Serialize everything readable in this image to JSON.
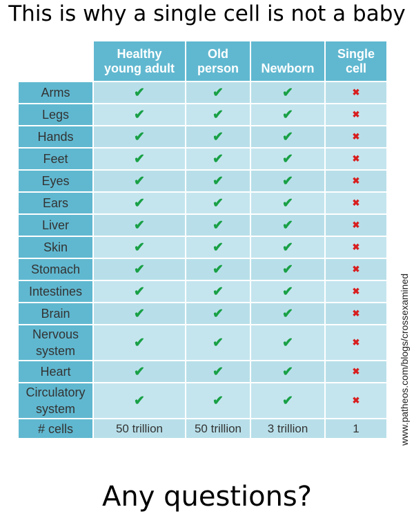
{
  "title": "This is why a single cell is not a baby",
  "columns": [
    "Healthy young adult",
    "Old person",
    "Newborn",
    "Single cell"
  ],
  "columns_lines": [
    [
      "Healthy",
      "young adult"
    ],
    [
      "Old",
      "person"
    ],
    [
      "",
      "Newborn"
    ],
    [
      "Single",
      "cell"
    ]
  ],
  "rows": [
    {
      "label": [
        "Arms"
      ],
      "values": [
        "✔",
        "✔",
        "✔",
        "✖"
      ]
    },
    {
      "label": [
        "Legs"
      ],
      "values": [
        "✔",
        "✔",
        "✔",
        "✖"
      ]
    },
    {
      "label": [
        "Hands"
      ],
      "values": [
        "✔",
        "✔",
        "✔",
        "✖"
      ]
    },
    {
      "label": [
        "Feet"
      ],
      "values": [
        "✔",
        "✔",
        "✔",
        "✖"
      ]
    },
    {
      "label": [
        "Eyes"
      ],
      "values": [
        "✔",
        "✔",
        "✔",
        "✖"
      ]
    },
    {
      "label": [
        "Ears"
      ],
      "values": [
        "✔",
        "✔",
        "✔",
        "✖"
      ]
    },
    {
      "label": [
        "Liver"
      ],
      "values": [
        "✔",
        "✔",
        "✔",
        "✖"
      ]
    },
    {
      "label": [
        "Skin"
      ],
      "values": [
        "✔",
        "✔",
        "✔",
        "✖"
      ]
    },
    {
      "label": [
        "Stomach"
      ],
      "values": [
        "✔",
        "✔",
        "✔",
        "✖"
      ]
    },
    {
      "label": [
        "Intestines"
      ],
      "values": [
        "✔",
        "✔",
        "✔",
        "✖"
      ]
    },
    {
      "label": [
        "Brain"
      ],
      "values": [
        "✔",
        "✔",
        "✔",
        "✖"
      ]
    },
    {
      "label": [
        "Nervous",
        "system"
      ],
      "values": [
        "✔",
        "✔",
        "✔",
        "✖"
      ]
    },
    {
      "label": [
        "Heart"
      ],
      "values": [
        "✔",
        "✔",
        "✔",
        "✖"
      ]
    },
    {
      "label": [
        "Circulatory",
        "system"
      ],
      "values": [
        "✔",
        "✔",
        "✔",
        "✖"
      ]
    }
  ],
  "count_row": {
    "label": "# cells",
    "values": [
      "50 trillion",
      "50 trillion",
      "3 trillion",
      "1"
    ]
  },
  "footer": "Any questions?",
  "credit": "www.patheos.com/blogs/crossexamined",
  "colors": {
    "header": "#60b8d0",
    "cell": "#b8dfe9",
    "check": "#19a046",
    "cross": "#d81e1e"
  }
}
